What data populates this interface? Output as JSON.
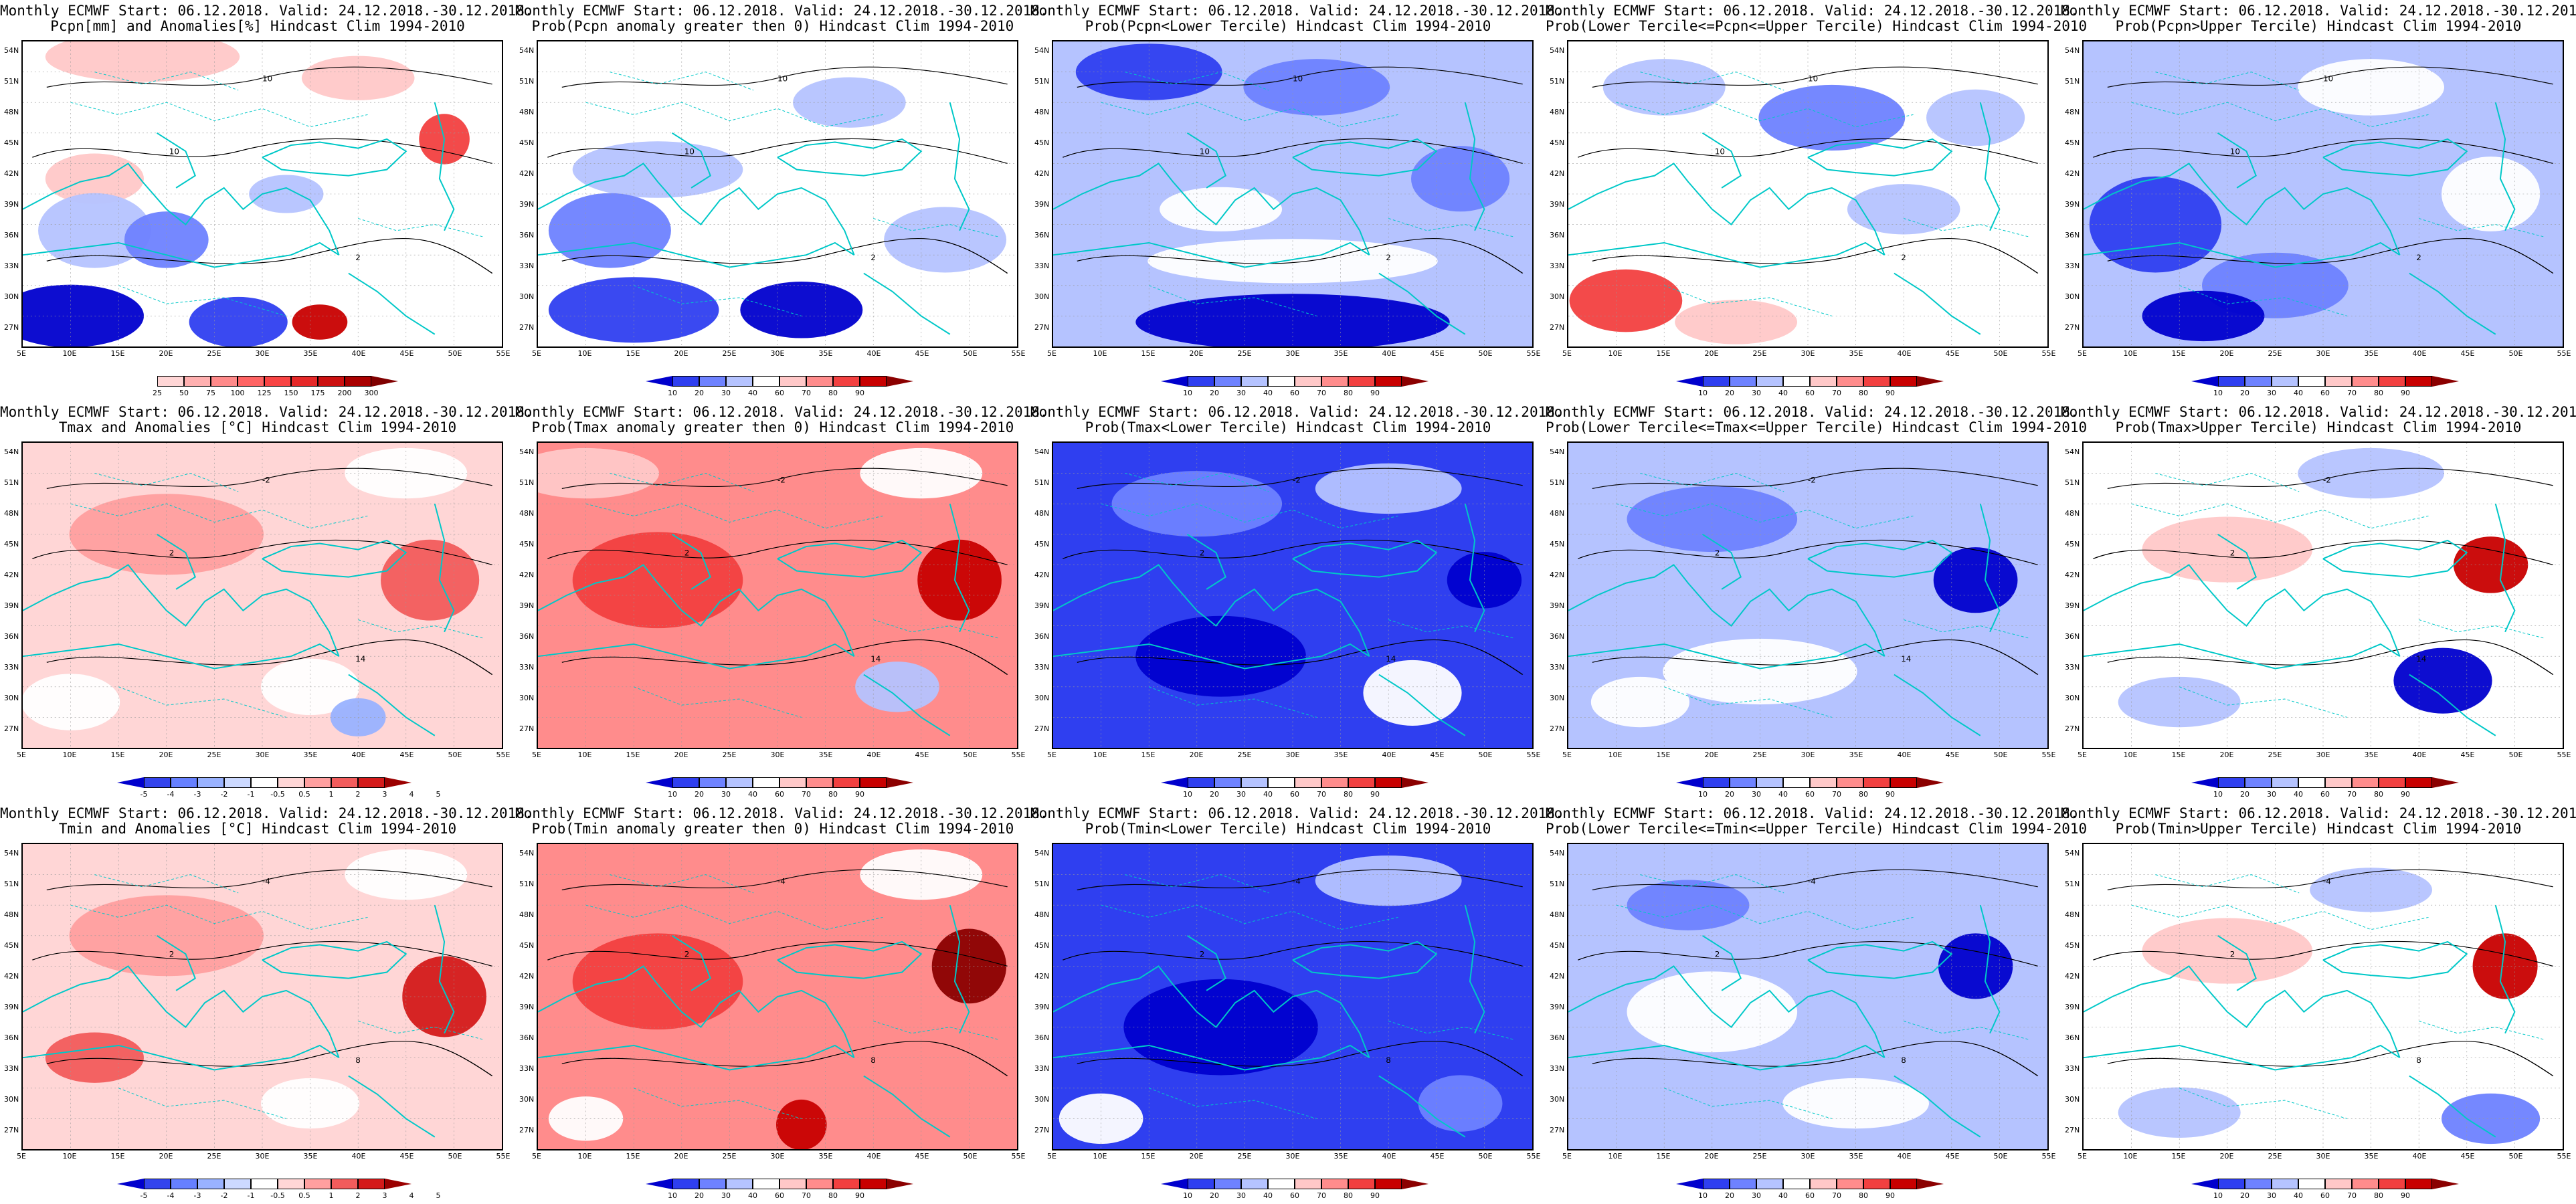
{
  "map_info": {
    "lat_ticks": [
      "54N",
      "51N",
      "48N",
      "45N",
      "42N",
      "39N",
      "36N",
      "33N",
      "30N",
      "27N"
    ],
    "lon_ticks": [
      "5E",
      "10E",
      "15E",
      "20E",
      "25E",
      "30E",
      "35E",
      "40E",
      "45E",
      "50E",
      "55E"
    ],
    "coastline_color": "#00c8c8",
    "contour_color": "#000000"
  },
  "color_scales": {
    "probability": {
      "colors": [
        "#0000cd",
        "#2f3ff0",
        "#6e82ff",
        "#b5c3ff",
        "#ffffff",
        "#ffc8c8",
        "#ff8c8c",
        "#f24040",
        "#c80000",
        "#8b0000"
      ],
      "labels": [
        "10",
        "20",
        "30",
        "40",
        "60",
        "70",
        "80",
        "90"
      ]
    },
    "precip_anom": {
      "colors": [
        "#ffffff",
        "#ffd6d6",
        "#ffb0b0",
        "#ff8a8a",
        "#ff6464",
        "#f84444",
        "#e62828",
        "#cc1010",
        "#aa0000",
        "#800000"
      ],
      "labels": [
        "25",
        "50",
        "75",
        "100",
        "125",
        "150",
        "175",
        "200",
        "300"
      ]
    },
    "temp_anom": {
      "colors": [
        "#0000cd",
        "#3344ee",
        "#6680ff",
        "#99b2ff",
        "#ccd9ff",
        "#ffffff",
        "#ffd6d6",
        "#ff9f9f",
        "#f25c5c",
        "#d41a1a",
        "#9b0000"
      ],
      "labels": [
        "-5",
        "-4",
        "-3",
        "-2",
        "-1",
        "-0.5",
        "0.5",
        "1",
        "2",
        "3",
        "4",
        "5"
      ]
    }
  },
  "panels": [
    {
      "id": "pcpn-anom",
      "title1": "Monthly ECMWF Start: 06.12.2018. Valid: 24.12.2018.-30.12.2018.",
      "title2": "Pcpn[mm] and Anomalies[%] Hindcast Clim 1994-2010",
      "scale": "precip_anom",
      "theme": "pcpn_anom",
      "contours": [
        {
          "lvl": "10"
        },
        {
          "lvl": "10"
        },
        {
          "lvl": "2"
        }
      ]
    },
    {
      "id": "pcpn-prob-gt0",
      "title1": "Monthly ECMWF Start: 06.12.2018. Valid: 24.12.2018.-30.12.2018.",
      "title2": "Prob(Pcpn anomaly greater then 0) Hindcast Clim 1994-2010",
      "scale": "probability",
      "theme": "pcpn_gt0",
      "contours": [
        {
          "lvl": "10"
        },
        {
          "lvl": "10"
        },
        {
          "lvl": "2"
        }
      ]
    },
    {
      "id": "pcpn-prob-lower",
      "title1": "Monthly ECMWF Start: 06.12.2018. Valid: 24.12.2018.-30.12.2018.",
      "title2": "Prob(Pcpn<Lower Tercile) Hindcast Clim 1994-2010",
      "scale": "probability",
      "theme": "pcpn_lower",
      "contours": [
        {
          "lvl": "10"
        },
        {
          "lvl": "10"
        },
        {
          "lvl": "2"
        }
      ]
    },
    {
      "id": "pcpn-prob-middle",
      "title1": "Monthly ECMWF Start: 06.12.2018. Valid: 24.12.2018.-30.12.2018.",
      "title2": "Prob(Lower Tercile<=Pcpn<=Upper Tercile) Hindcast Clim 1994-2010",
      "scale": "probability",
      "theme": "pcpn_middle",
      "contours": [
        {
          "lvl": "10"
        },
        {
          "lvl": "10"
        },
        {
          "lvl": "2"
        }
      ]
    },
    {
      "id": "pcpn-prob-upper",
      "title1": "Monthly ECMWF Start: 06.12.2018. Valid: 24.12.2018.-30.12.2018.",
      "title2": "Prob(Pcpn>Upper Tercile) Hindcast Clim 1994-2010",
      "scale": "probability",
      "theme": "pcpn_upper",
      "contours": [
        {
          "lvl": "10"
        },
        {
          "lvl": "10"
        },
        {
          "lvl": "2"
        }
      ]
    },
    {
      "id": "tmax-anom",
      "title1": "Monthly ECMWF Start: 06.12.2018. Valid: 24.12.2018.-30.12.2018.",
      "title2": "Tmax and Anomalies [°C] Hindcast Clim 1994-2010",
      "scale": "temp_anom",
      "theme": "tmax_anom",
      "contours": [
        {
          "lvl": "-2"
        },
        {
          "lvl": "2"
        },
        {
          "lvl": "14"
        }
      ]
    },
    {
      "id": "tmax-prob-gt0",
      "title1": "Monthly ECMWF Start: 06.12.2018. Valid: 24.12.2018.-30.12.2018.",
      "title2": "Prob(Tmax anomaly greater then 0) Hindcast Clim 1994-2010",
      "scale": "probability",
      "theme": "tmax_gt0",
      "contours": [
        {
          "lvl": "-2"
        },
        {
          "lvl": "2"
        },
        {
          "lvl": "14"
        }
      ]
    },
    {
      "id": "tmax-prob-lower",
      "title1": "Monthly ECMWF Start: 06.12.2018. Valid: 24.12.2018.-30.12.2018.",
      "title2": "Prob(Tmax<Lower Tercile) Hindcast Clim 1994-2010",
      "scale": "probability",
      "theme": "tmax_lower",
      "contours": [
        {
          "lvl": "-2"
        },
        {
          "lvl": "2"
        },
        {
          "lvl": "14"
        }
      ]
    },
    {
      "id": "tmax-prob-middle",
      "title1": "Monthly ECMWF Start: 06.12.2018. Valid: 24.12.2018.-30.12.2018.",
      "title2": "Prob(Lower Tercile<=Tmax<=Upper Tercile) Hindcast Clim 1994-2010",
      "scale": "probability",
      "theme": "tmax_middle",
      "contours": [
        {
          "lvl": "-2"
        },
        {
          "lvl": "2"
        },
        {
          "lvl": "14"
        }
      ]
    },
    {
      "id": "tmax-prob-upper",
      "title1": "Monthly ECMWF Start: 06.12.2018. Valid: 24.12.2018.-30.12.2018.",
      "title2": "Prob(Tmax>Upper Tercile) Hindcast Clim 1994-2010",
      "scale": "probability",
      "theme": "tmax_upper",
      "contours": [
        {
          "lvl": "-2"
        },
        {
          "lvl": "2"
        },
        {
          "lvl": "14"
        }
      ]
    },
    {
      "id": "tmin-anom",
      "title1": "Monthly ECMWF Start: 06.12.2018. Valid: 24.12.2018.-30.12.2018.",
      "title2": "Tmin and Anomalies [°C] Hindcast Clim 1994-2010",
      "scale": "temp_anom",
      "theme": "tmin_anom",
      "contours": [
        {
          "lvl": "-4"
        },
        {
          "lvl": "2"
        },
        {
          "lvl": "8"
        }
      ]
    },
    {
      "id": "tmin-prob-gt0",
      "title1": "Monthly ECMWF Start: 06.12.2018. Valid: 24.12.2018.-30.12.2018.",
      "title2": "Prob(Tmin anomaly greater then 0) Hindcast Clim 1994-2010",
      "scale": "probability",
      "theme": "tmin_gt0",
      "contours": [
        {
          "lvl": "-4"
        },
        {
          "lvl": "2"
        },
        {
          "lvl": "8"
        }
      ]
    },
    {
      "id": "tmin-prob-lower",
      "title1": "Monthly ECMWF Start: 06.12.2018. Valid: 24.12.2018.-30.12.2018.",
      "title2": "Prob(Tmin<Lower Tercile) Hindcast Clim 1994-2010",
      "scale": "probability",
      "theme": "tmin_lower",
      "contours": [
        {
          "lvl": "-4"
        },
        {
          "lvl": "2"
        },
        {
          "lvl": "8"
        }
      ]
    },
    {
      "id": "tmin-prob-middle",
      "title1": "Monthly ECMWF Start: 06.12.2018. Valid: 24.12.2018.-30.12.2018.",
      "title2": "Prob(Lower Tercile<=Tmin<=Upper Tercile) Hindcast Clim 1994-2010",
      "scale": "probability",
      "theme": "tmin_middle",
      "contours": [
        {
          "lvl": "-4"
        },
        {
          "lvl": "2"
        },
        {
          "lvl": "8"
        }
      ]
    },
    {
      "id": "tmin-prob-upper",
      "title1": "Monthly ECMWF Start: 06.12.2018. Valid: 24.12.2018.-30.12.2018.",
      "title2": "Prob(Tmin>Upper Tercile) Hindcast Clim 1994-2010",
      "scale": "probability",
      "theme": "tmin_upper",
      "contours": [
        {
          "lvl": "-4"
        },
        {
          "lvl": "2"
        },
        {
          "lvl": "8"
        }
      ]
    }
  ]
}
